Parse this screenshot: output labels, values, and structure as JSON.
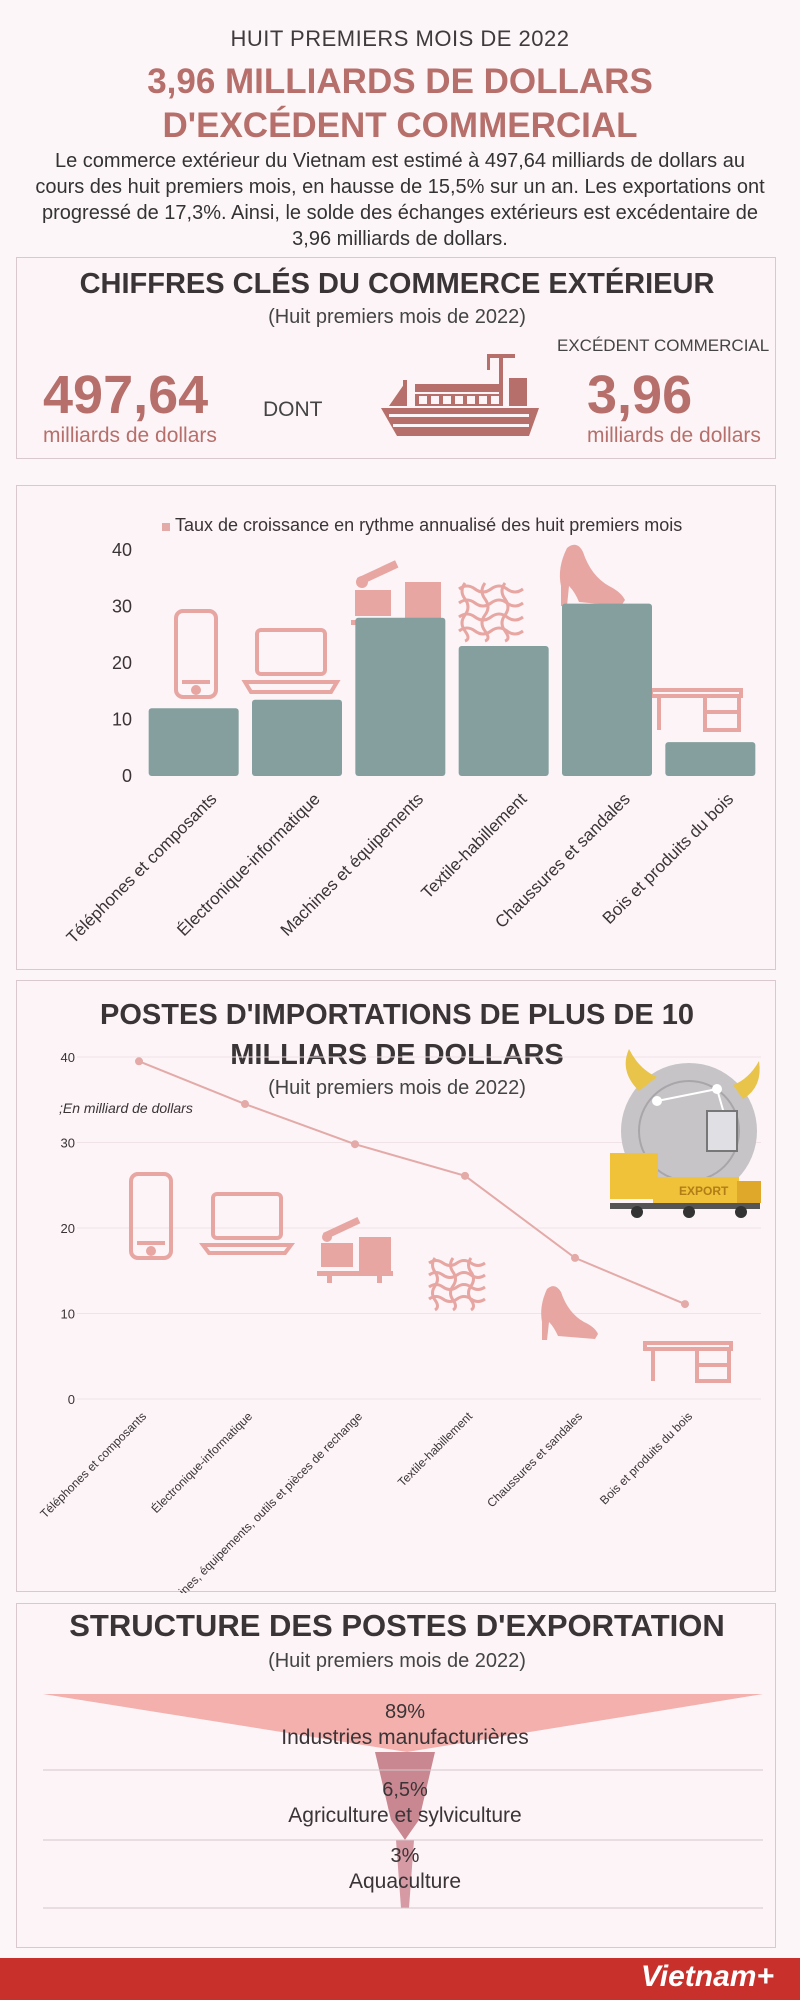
{
  "header": {
    "kicker": "HUIT PREMIERS MOIS DE 2022",
    "headline_line1": "3,96 MILLIARDS DE DOLLARS",
    "headline_line2": "D'EXCÉDENT COMMERCIAL",
    "intro": "Le commerce extérieur du Vietnam est estimé à 497,64 milliards de dollars au cours des huit premiers mois, en hausse de 15,5% sur un an. Les exportations ont progressé de 17,3%. Ainsi, le solde des échanges extérieurs est excédentaire de 3,96 milliards de dollars."
  },
  "key_figures": {
    "title": "CHIFFRES CLÉS DU COMMERCE EXTÉRIEUR",
    "subtitle": "(Huit premiers mois de 2022)",
    "total_value": "497,64",
    "total_unit": "milliards de dollars",
    "dont": "DONT",
    "surplus_label": "EXCÉDENT COMMERCIAL",
    "surplus_value": "3,96",
    "surplus_unit": "milliards de dollars"
  },
  "growth_section": {
    "legend_label": "Taux de croissance en rythme annualisé des huit premiers mois"
  },
  "imports_section": {
    "title_line1": "POSTES D'IMPORTATIONS DE PLUS DE 10",
    "title_line2": "MILLIARS DE DOLLARS",
    "subtitle": "(Huit premiers mois de 2022)",
    "unit_note": ";En milliard de dollars",
    "truck_text": "EXPORT"
  },
  "export_structure": {
    "title": "STRUCTURE DES POSTES D'EXPORTATION",
    "subtitle": "(Huit premiers mois de 2022)",
    "items": [
      {
        "pct": "89%",
        "label": "Industries manufacturières"
      },
      {
        "pct": "6,5%",
        "label": "Agriculture et sylviculture"
      },
      {
        "pct": "3%",
        "label": "Aquaculture"
      }
    ]
  },
  "footer": {
    "brand": "Vietnam+"
  },
  "colors": {
    "accent": "#b66f6a",
    "bar": "#849f9e",
    "icon": "#e7a6a2",
    "line": "#e3aaa8",
    "funnel": "#f3b0ad",
    "funnel_dark": "#c98791",
    "footer": "#c8302b"
  },
  "chart_data": [
    {
      "type": "bar",
      "legend": "Taux de croissance en rythme annualisé des huit premiers mois",
      "categories": [
        "Téléphones et composants",
        "Électronique-informatique",
        "Machines et équipements",
        "Textile-habillement",
        "Chaussures et sandales",
        "Bois et produits du bois"
      ],
      "values": [
        12,
        13.5,
        28,
        23,
        30.5,
        6
      ],
      "yticks": [
        0,
        10,
        20,
        30,
        40
      ],
      "ylim": [
        0,
        40
      ],
      "legend_position": "top"
    },
    {
      "type": "line",
      "title": "POSTES D'IMPORTATIONS DE PLUS DE 10 MILLIARS DE DOLLARS",
      "ylabel": ";En milliard de dollars",
      "categories": [
        "Téléphones et composants",
        "Électronique-informatique",
        "Machines, équipements, outils et pièces de rechange",
        "Textile-habillement",
        "Chaussures et sandales",
        "Bois et produits du bois"
      ],
      "values": [
        39.5,
        34.5,
        29.8,
        26.1,
        16.5,
        11.1
      ],
      "yticks": [
        0,
        10,
        20,
        30,
        40
      ],
      "ylim": [
        0,
        40
      ]
    },
    {
      "type": "funnel",
      "title": "STRUCTURE DES POSTES D'EXPORTATION",
      "categories": [
        "Industries manufacturières",
        "Agriculture et sylviculture",
        "Aquaculture"
      ],
      "values": [
        89,
        6.5,
        3
      ]
    }
  ]
}
